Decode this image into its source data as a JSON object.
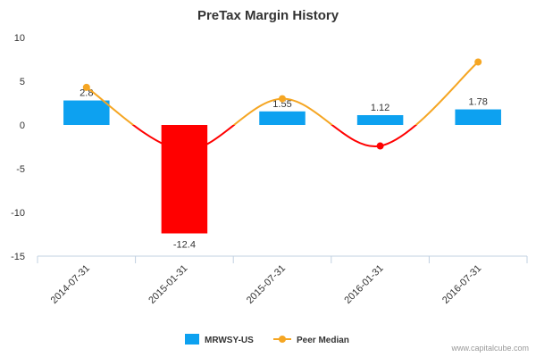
{
  "chart_data": {
    "type": "bar",
    "title": "PreTax Margin History",
    "categories": [
      "2014-07-31",
      "2015-01-31",
      "2015-07-31",
      "2016-01-31",
      "2016-07-31"
    ],
    "ylim": [
      -15,
      10
    ],
    "yticks": [
      10,
      5,
      0,
      -5,
      -10,
      -15
    ],
    "grid": false,
    "legend_position": "bottom",
    "series": [
      {
        "name": "MRWSY-US",
        "type": "bar",
        "values": [
          2.8,
          -12.4,
          1.55,
          1.12,
          1.78
        ],
        "data_labels": [
          "2.8",
          "-12.4",
          "1.55",
          "1.12",
          "1.78"
        ],
        "color": "#0da1f0",
        "negative_color": "#ff0000"
      },
      {
        "name": "Peer Median",
        "type": "spline",
        "values": [
          4.3,
          -2.9,
          3.0,
          -2.4,
          7.2
        ],
        "color": "#f5a623",
        "below_zero_color": "#ff0000"
      }
    ]
  },
  "credit": "www.capitalcube.com"
}
